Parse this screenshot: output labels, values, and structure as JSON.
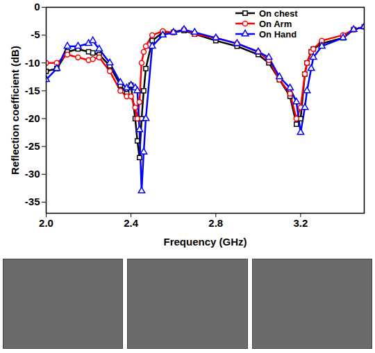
{
  "chart_data": {
    "type": "line",
    "x_label": "Frequency (GHz)",
    "y_label": "Reflection coefficient (dB)",
    "x": [
      2.0,
      2.05,
      2.1,
      2.15,
      2.2,
      2.22,
      2.25,
      2.3,
      2.35,
      2.38,
      2.4,
      2.42,
      2.43,
      2.44,
      2.45,
      2.46,
      2.47,
      2.5,
      2.55,
      2.6,
      2.65,
      2.7,
      2.8,
      2.9,
      3.0,
      3.05,
      3.1,
      3.15,
      3.18,
      3.2,
      3.22,
      3.23,
      3.25,
      3.26,
      3.3,
      3.4,
      3.45,
      3.5
    ],
    "series": [
      {
        "name": "On chest",
        "color": "#000000",
        "marker": "square",
        "values": [
          -11.5,
          -11,
          -8,
          -7.5,
          -8,
          -8.2,
          -8.5,
          -10.5,
          -14,
          -15.5,
          -14,
          -20,
          -24,
          -27,
          -20,
          -15,
          -11,
          -6,
          -4.5,
          -4.5,
          -4.2,
          -4.8,
          -6,
          -7,
          -8.5,
          -10,
          -13,
          -16,
          -21,
          -20,
          -12,
          -10,
          -8,
          -7.5,
          -6.5,
          -5.5,
          -4,
          -3.5
        ]
      },
      {
        "name": "On Arm",
        "color": "#ff0000",
        "marker": "circle",
        "values": [
          -10,
          -10,
          -8.5,
          -9,
          -9.5,
          -9.3,
          -9,
          -11.5,
          -15,
          -16,
          -16,
          -18,
          -20,
          -17,
          -10,
          -8,
          -7,
          -5,
          -4.3,
          -4.5,
          -4,
          -4.8,
          -5.5,
          -6.5,
          -8,
          -9.5,
          -13,
          -15.5,
          -20,
          -18,
          -12,
          -10,
          -8,
          -7.5,
          -6,
          -5,
          -4,
          -3.5
        ]
      },
      {
        "name": "On Hand",
        "color": "#0000ff",
        "marker": "triangle",
        "values": [
          -13,
          -11,
          -7,
          -7,
          -6.5,
          -6,
          -7.5,
          -10,
          -13.5,
          -14.5,
          -14,
          -14.5,
          -15,
          -22,
          -33,
          -26,
          -20,
          -7,
          -5,
          -4.5,
          -4,
          -4.5,
          -5.5,
          -6.5,
          -8,
          -9,
          -12.5,
          -14.5,
          -17,
          -22.5,
          -18,
          -15,
          -11,
          -9,
          -7,
          -5.5,
          -4,
          -3.5
        ]
      }
    ],
    "xlim": [
      2.0,
      3.5
    ],
    "xticks": [
      {
        "value": 2.0,
        "label": "2.0"
      },
      {
        "value": 2.4,
        "label": "2.4"
      },
      {
        "value": 2.8,
        "label": "2.8"
      },
      {
        "value": 3.2,
        "label": "3.2"
      }
    ],
    "ylim": [
      -37,
      0
    ],
    "yticks": [
      -35,
      -30,
      -25,
      -20,
      -15,
      -10,
      -5,
      0
    ],
    "grid": false,
    "legend": "top-right"
  }
}
